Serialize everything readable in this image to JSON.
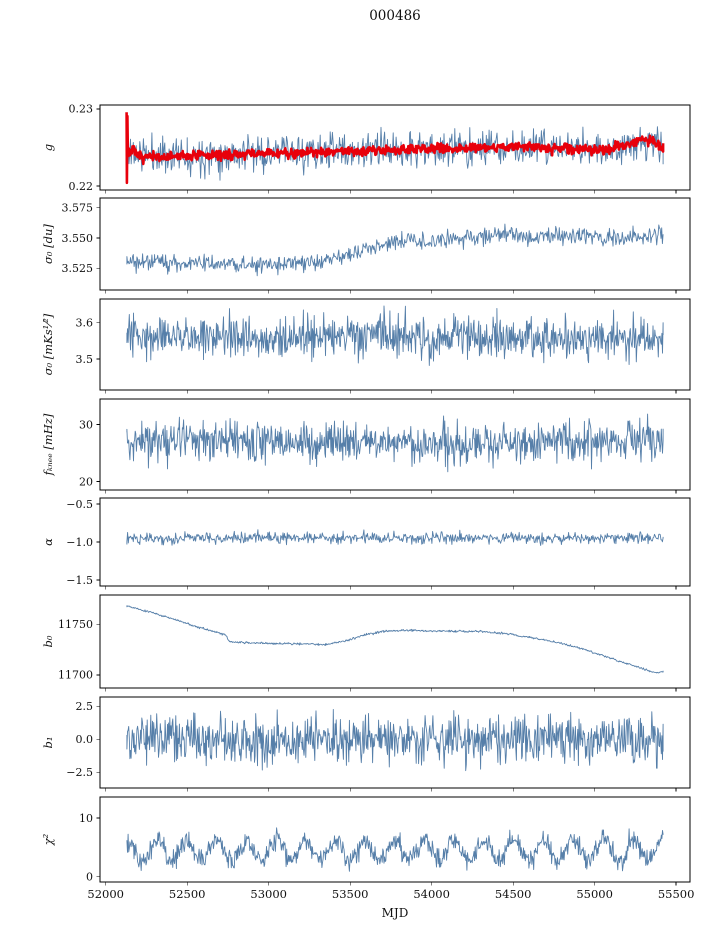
{
  "title": "000486",
  "chart_data": {
    "type": "line",
    "title": "000486",
    "xlabel": "MJD",
    "xlim": [
      51965,
      55585
    ],
    "x_start": 52130,
    "x_end": 55420,
    "xticks": [
      {
        "v": 52000,
        "label": "52000"
      },
      {
        "v": 52500,
        "label": "52500"
      },
      {
        "v": 53000,
        "label": "53000"
      },
      {
        "v": 53500,
        "label": "53500"
      },
      {
        "v": 54000,
        "label": "54000"
      },
      {
        "v": 54500,
        "label": "54500"
      },
      {
        "v": 55000,
        "label": "55000"
      },
      {
        "v": 55500,
        "label": "55500"
      }
    ],
    "colors": {
      "series_blue": "#567fa9",
      "series_red": "#e8000b",
      "spine": "#000000"
    },
    "panels": [
      {
        "ylabel": "g",
        "ylim": [
          0.2195,
          0.2305
        ],
        "yticks": [
          {
            "v": 0.22,
            "label": "0.22"
          },
          {
            "v": 0.23,
            "label": "0.23"
          }
        ],
        "series": [
          {
            "name": "g-daily",
            "color": "#567fa9",
            "linewidth": 0.9,
            "n": 750,
            "seed": 11,
            "noise": 0.002,
            "trend": [
              [
                52130,
                0.2245
              ],
              [
                52250,
                0.224
              ],
              [
                52500,
                0.2241
              ],
              [
                52800,
                0.2242
              ],
              [
                53100,
                0.2243
              ],
              [
                53400,
                0.2245
              ],
              [
                53700,
                0.2246
              ],
              [
                54000,
                0.2248
              ],
              [
                54300,
                0.2249
              ],
              [
                54600,
                0.225
              ],
              [
                54900,
                0.2248
              ],
              [
                55100,
                0.2249
              ],
              [
                55250,
                0.2256
              ],
              [
                55350,
                0.2257
              ],
              [
                55420,
                0.2248
              ]
            ]
          },
          {
            "name": "g-smoothed",
            "color": "#e8000b",
            "linewidth": 2.6,
            "n": 900,
            "seed": 7,
            "noise": 0.00055,
            "x0": 52128,
            "trend": [
              [
                52128,
                0.2297
              ],
              [
                52130,
                0.2206
              ],
              [
                52133,
                0.229
              ],
              [
                52136,
                0.224
              ],
              [
                52160,
                0.2247
              ],
              [
                52200,
                0.2238
              ],
              [
                52300,
                0.2237
              ],
              [
                52500,
                0.2239
              ],
              [
                52800,
                0.2241
              ],
              [
                53100,
                0.2243
              ],
              [
                53400,
                0.2245
              ],
              [
                53700,
                0.2247
              ],
              [
                54000,
                0.2248
              ],
              [
                54300,
                0.225
              ],
              [
                54600,
                0.2251
              ],
              [
                54900,
                0.2248
              ],
              [
                55050,
                0.2247
              ],
              [
                55200,
                0.2253
              ],
              [
                55300,
                0.2261
              ],
              [
                55360,
                0.2259
              ],
              [
                55420,
                0.2247
              ]
            ]
          }
        ]
      },
      {
        "ylabel": "σ₀ [du]",
        "ylim": [
          3.507,
          3.583
        ],
        "yticks": [
          {
            "v": 3.525,
            "label": "3.525"
          },
          {
            "v": 3.55,
            "label": "3.550"
          },
          {
            "v": 3.575,
            "label": "3.575"
          }
        ],
        "series": [
          {
            "name": "sigma0-du",
            "color": "#567fa9",
            "linewidth": 0.9,
            "n": 750,
            "seed": 21,
            "noise": 0.0062,
            "trend": [
              [
                52130,
                3.531
              ],
              [
                52300,
                3.53
              ],
              [
                52600,
                3.5295
              ],
              [
                52800,
                3.528
              ],
              [
                53000,
                3.527
              ],
              [
                53200,
                3.529
              ],
              [
                53350,
                3.531
              ],
              [
                53500,
                3.536
              ],
              [
                53650,
                3.543
              ],
              [
                53800,
                3.548
              ],
              [
                54000,
                3.547
              ],
              [
                54150,
                3.55
              ],
              [
                54300,
                3.551
              ],
              [
                54500,
                3.553
              ],
              [
                54650,
                3.55
              ],
              [
                54800,
                3.553
              ],
              [
                54950,
                3.551
              ],
              [
                55100,
                3.549
              ],
              [
                55250,
                3.551
              ],
              [
                55420,
                3.553
              ]
            ]
          }
        ]
      },
      {
        "ylabel": "σ₀ [mKs¹⁄²]",
        "ylim": [
          3.415,
          3.665
        ],
        "yticks": [
          {
            "v": 3.5,
            "label": "3.5"
          },
          {
            "v": 3.6,
            "label": "3.6"
          }
        ],
        "series": [
          {
            "name": "sigma0-mks",
            "color": "#567fa9",
            "linewidth": 0.9,
            "n": 900,
            "seed": 31,
            "noise": 0.05,
            "trend": [
              [
                52130,
                3.557
              ],
              [
                52350,
                3.572
              ],
              [
                52600,
                3.56
              ],
              [
                52900,
                3.552
              ],
              [
                53200,
                3.558
              ],
              [
                53500,
                3.561
              ],
              [
                53800,
                3.565
              ],
              [
                54100,
                3.559
              ],
              [
                54400,
                3.563
              ],
              [
                54700,
                3.56
              ],
              [
                55000,
                3.561
              ],
              [
                55200,
                3.556
              ],
              [
                55420,
                3.556
              ]
            ]
          }
        ]
      },
      {
        "ylabel": "fₖₙₑₑ [mHz]",
        "ylim": [
          18.5,
          34.5
        ],
        "yticks": [
          {
            "v": 20,
            "label": "20"
          },
          {
            "v": 30,
            "label": "30"
          }
        ],
        "series": [
          {
            "name": "fknee",
            "color": "#567fa9",
            "linewidth": 0.9,
            "n": 900,
            "seed": 41,
            "noise": 3.1,
            "trend": [
              [
                52130,
                27.0
              ],
              [
                52600,
                27.3
              ],
              [
                53100,
                26.8
              ],
              [
                53600,
                27.0
              ],
              [
                54100,
                26.6
              ],
              [
                54600,
                27.0
              ],
              [
                55100,
                27.2
              ],
              [
                55420,
                27.3
              ]
            ]
          }
        ]
      },
      {
        "ylabel": "α",
        "ylim": [
          -1.58,
          -0.42
        ],
        "yticks": [
          {
            "v": -0.5,
            "label": "−0.5"
          },
          {
            "v": -1.0,
            "label": "−1.0"
          },
          {
            "v": -1.5,
            "label": "−1.5"
          }
        ],
        "series": [
          {
            "name": "alpha",
            "color": "#567fa9",
            "linewidth": 0.9,
            "n": 750,
            "seed": 51,
            "noise": 0.065,
            "trend": [
              [
                52130,
                -0.95
              ],
              [
                53000,
                -0.945
              ],
              [
                54000,
                -0.95
              ],
              [
                55420,
                -0.945
              ]
            ]
          }
        ]
      },
      {
        "ylabel": "b₀",
        "ylim": [
          11687,
          11779
        ],
        "yticks": [
          {
            "v": 11700,
            "label": "11700"
          },
          {
            "v": 11750,
            "label": "11750"
          }
        ],
        "series": [
          {
            "name": "b0",
            "color": "#567fa9",
            "linewidth": 0.9,
            "n": 800,
            "seed": 61,
            "noise": 0.9,
            "trend": [
              [
                52130,
                11768
              ],
              [
                52250,
                11763
              ],
              [
                52400,
                11756
              ],
              [
                52550,
                11748
              ],
              [
                52680,
                11742
              ],
              [
                52730,
                11740
              ],
              [
                52760,
                11733
              ],
              [
                52900,
                11731.5
              ],
              [
                53050,
                11731
              ],
              [
                53200,
                11730.5
              ],
              [
                53350,
                11730
              ],
              [
                53480,
                11734
              ],
              [
                53600,
                11740
              ],
              [
                53720,
                11743.5
              ],
              [
                53850,
                11744
              ],
              [
                54000,
                11743.5
              ],
              [
                54150,
                11743
              ],
              [
                54300,
                11743
              ],
              [
                54450,
                11741
              ],
              [
                54600,
                11737
              ],
              [
                54750,
                11733
              ],
              [
                54900,
                11727
              ],
              [
                55050,
                11719
              ],
              [
                55200,
                11711
              ],
              [
                55300,
                11706
              ],
              [
                55380,
                11702
              ],
              [
                55420,
                11703.5
              ]
            ]
          }
        ]
      },
      {
        "ylabel": "b₁",
        "ylim": [
          -3.7,
          3.2
        ],
        "yticks": [
          {
            "v": 2.5,
            "label": "2.5"
          },
          {
            "v": 0.0,
            "label": "0.0"
          },
          {
            "v": -2.5,
            "label": "−2.5"
          }
        ],
        "series": [
          {
            "name": "b1",
            "color": "#567fa9",
            "linewidth": 0.9,
            "n": 900,
            "seed": 71,
            "noise": 1.55,
            "trend": [
              [
                52130,
                0
              ],
              [
                55420,
                0
              ]
            ]
          }
        ]
      },
      {
        "ylabel": "χ²",
        "ylim": [
          -0.9,
          13.6
        ],
        "yticks": [
          {
            "v": 0,
            "label": "0"
          },
          {
            "v": 10,
            "label": "10"
          }
        ],
        "series": [
          {
            "name": "chi2",
            "color": "#567fa9",
            "linewidth": 0.9,
            "n": 900,
            "seed": 81,
            "noise": 1.5,
            "osc": {
              "period": 182.6,
              "amp": 1.7,
              "phase": 1.5
            },
            "trend": [
              [
                52130,
                4.4
              ],
              [
                53000,
                4.5
              ],
              [
                54000,
                4.4
              ],
              [
                55420,
                4.5
              ]
            ]
          }
        ]
      }
    ]
  }
}
